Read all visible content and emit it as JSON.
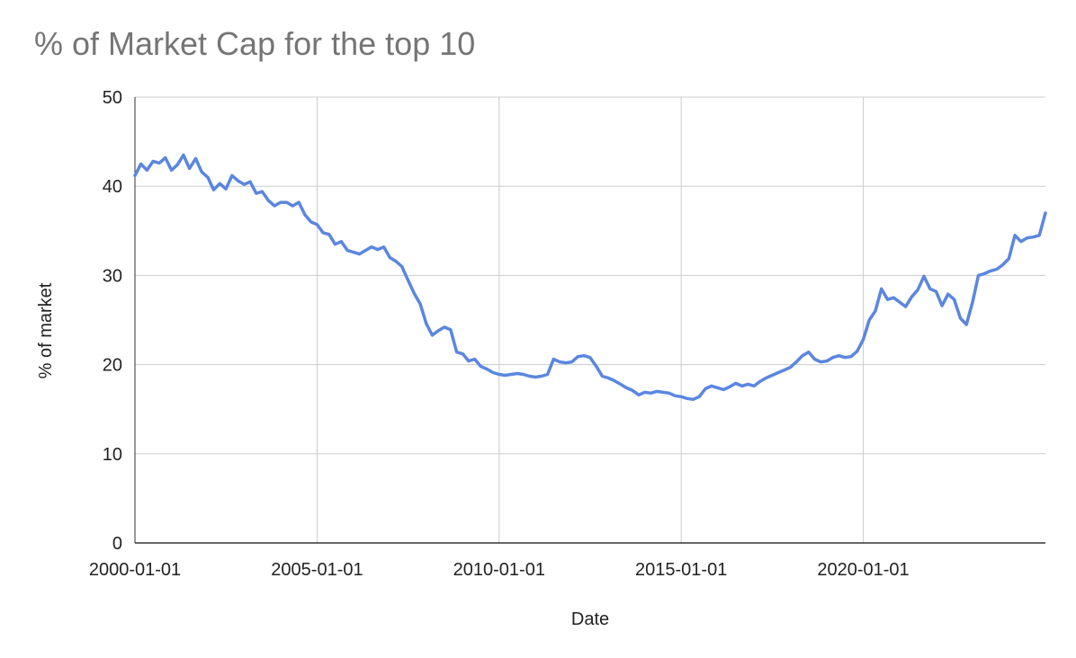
{
  "chart_data": {
    "type": "line",
    "title": "% of Market Cap for the top 10",
    "xlabel": "Date",
    "ylabel": "% of market",
    "ylim": [
      0,
      50
    ],
    "yticks": [
      0,
      10,
      20,
      30,
      40,
      50
    ],
    "xlim": [
      "2000-01-01",
      "2025-01-01"
    ],
    "xticks": [
      "2000-01-01",
      "2005-01-01",
      "2010-01-01",
      "2015-01-01",
      "2020-01-01"
    ],
    "grid": true,
    "colors": {
      "line": "#5b86e0",
      "grid": "#cccccc",
      "axis": "#333333"
    },
    "series": [
      {
        "x": [
          "2000-01-01",
          "2000-03-01",
          "2000-05-01",
          "2000-07-01",
          "2000-09-01",
          "2000-11-01",
          "2001-01-01",
          "2001-03-01",
          "2001-05-01",
          "2001-07-01",
          "2001-09-01",
          "2001-11-01",
          "2002-01-01",
          "2002-03-01",
          "2002-05-01",
          "2002-07-01",
          "2002-09-01",
          "2002-11-01",
          "2003-01-01",
          "2003-03-01",
          "2003-05-01",
          "2003-07-01",
          "2003-09-01",
          "2003-11-01",
          "2004-01-01",
          "2004-03-01",
          "2004-05-01",
          "2004-07-01",
          "2004-09-01",
          "2004-11-01",
          "2005-01-01",
          "2005-03-01",
          "2005-05-01",
          "2005-07-01",
          "2005-09-01",
          "2005-11-01",
          "2006-01-01",
          "2006-03-01",
          "2006-05-01",
          "2006-07-01",
          "2006-09-01",
          "2006-11-01",
          "2007-01-01",
          "2007-03-01",
          "2007-05-01",
          "2007-07-01",
          "2007-09-01",
          "2007-11-01",
          "2008-01-01",
          "2008-03-01",
          "2008-05-01",
          "2008-07-01",
          "2008-09-01",
          "2008-11-01",
          "2009-01-01",
          "2009-03-01",
          "2009-05-01",
          "2009-07-01",
          "2009-09-01",
          "2009-11-01",
          "2010-01-01",
          "2010-03-01",
          "2010-05-01",
          "2010-07-01",
          "2010-09-01",
          "2010-11-01",
          "2011-01-01",
          "2011-03-01",
          "2011-05-01",
          "2011-07-01",
          "2011-09-01",
          "2011-11-01",
          "2012-01-01",
          "2012-03-01",
          "2012-05-01",
          "2012-07-01",
          "2012-09-01",
          "2012-11-01",
          "2013-01-01",
          "2013-03-01",
          "2013-05-01",
          "2013-07-01",
          "2013-09-01",
          "2013-11-01",
          "2014-01-01",
          "2014-03-01",
          "2014-05-01",
          "2014-07-01",
          "2014-09-01",
          "2014-11-01",
          "2015-01-01",
          "2015-03-01",
          "2015-05-01",
          "2015-07-01",
          "2015-09-01",
          "2015-11-01",
          "2016-01-01",
          "2016-03-01",
          "2016-05-01",
          "2016-07-01",
          "2016-09-01",
          "2016-11-01",
          "2017-01-01",
          "2017-03-01",
          "2017-05-01",
          "2017-07-01",
          "2017-09-01",
          "2017-11-01",
          "2018-01-01",
          "2018-03-01",
          "2018-05-01",
          "2018-07-01",
          "2018-09-01",
          "2018-11-01",
          "2019-01-01",
          "2019-03-01",
          "2019-05-01",
          "2019-07-01",
          "2019-09-01",
          "2019-11-01",
          "2020-01-01",
          "2020-03-01",
          "2020-05-01",
          "2020-07-01",
          "2020-09-01",
          "2020-11-01",
          "2021-01-01",
          "2021-03-01",
          "2021-05-01",
          "2021-07-01",
          "2021-09-01",
          "2021-11-01",
          "2022-01-01",
          "2022-03-01",
          "2022-05-01",
          "2022-07-01",
          "2022-09-01",
          "2022-11-01",
          "2023-01-01",
          "2023-03-01",
          "2023-05-01",
          "2023-07-01",
          "2023-09-01",
          "2023-11-01",
          "2024-01-01",
          "2024-03-01",
          "2024-05-01",
          "2024-07-01",
          "2024-09-01",
          "2024-11-01",
          "2025-01-01"
        ],
        "values": [
          41.2,
          42.5,
          41.8,
          42.8,
          42.6,
          43.2,
          41.8,
          42.4,
          43.5,
          42.0,
          43.1,
          41.6,
          41.0,
          39.6,
          40.3,
          39.7,
          41.2,
          40.6,
          40.2,
          40.5,
          39.2,
          39.4,
          38.4,
          37.8,
          38.2,
          38.2,
          37.8,
          38.2,
          36.8,
          36.0,
          35.7,
          34.8,
          34.6,
          33.5,
          33.8,
          32.8,
          32.6,
          32.4,
          32.8,
          33.2,
          32.9,
          33.2,
          32.0,
          31.6,
          31.0,
          29.5,
          28.0,
          26.8,
          24.6,
          23.3,
          23.8,
          24.2,
          23.9,
          21.4,
          21.2,
          20.4,
          20.6,
          19.8,
          19.5,
          19.1,
          18.9,
          18.8,
          18.9,
          19.0,
          18.9,
          18.7,
          18.6,
          18.7,
          18.9,
          20.6,
          20.3,
          20.2,
          20.3,
          20.9,
          21.0,
          20.8,
          19.8,
          18.7,
          18.5,
          18.2,
          17.8,
          17.4,
          17.1,
          16.6,
          16.9,
          16.8,
          17.0,
          16.9,
          16.8,
          16.5,
          16.4,
          16.2,
          16.1,
          16.4,
          17.3,
          17.6,
          17.4,
          17.2,
          17.5,
          17.9,
          17.6,
          17.8,
          17.6,
          18.1,
          18.5,
          18.8,
          19.1,
          19.4,
          19.7,
          20.3,
          21.0,
          21.4,
          20.6,
          20.3,
          20.4,
          20.8,
          21.0,
          20.8,
          20.9,
          21.5,
          22.8,
          25.0,
          26.0,
          28.5,
          27.3,
          27.5,
          27.0,
          26.5,
          27.6,
          28.4,
          29.9,
          28.5,
          28.2,
          26.6,
          27.9,
          27.3,
          25.2,
          24.5,
          27.0,
          30.0,
          30.2,
          30.5,
          30.7,
          31.2,
          31.9,
          34.5,
          33.8,
          34.2,
          34.3,
          34.5,
          37.0
        ]
      }
    ]
  }
}
